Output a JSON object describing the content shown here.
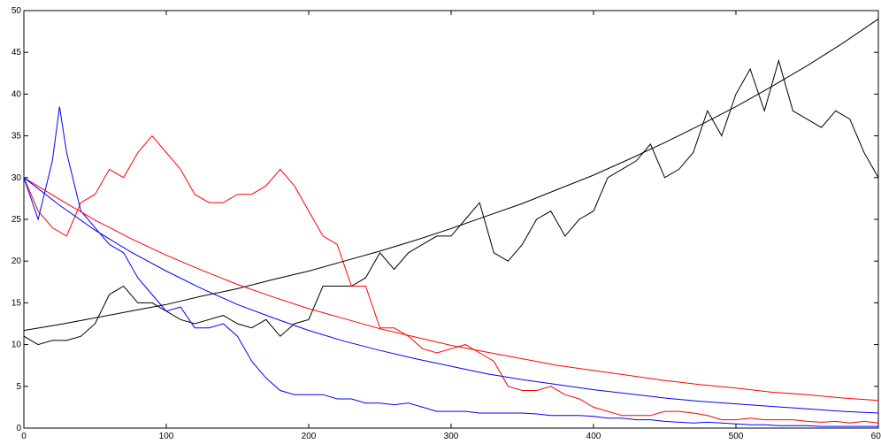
{
  "chart_data": {
    "type": "line",
    "xlim": [
      0,
      600
    ],
    "ylim": [
      0,
      50
    ],
    "xticks": [
      0,
      100,
      200,
      300,
      400,
      500,
      600
    ],
    "yticks": [
      0,
      5,
      10,
      15,
      20,
      25,
      30,
      35,
      40,
      45,
      50
    ],
    "series": [
      {
        "color": "#000000",
        "x": [
          0,
          10,
          20,
          30,
          40,
          50,
          60,
          70,
          80,
          90,
          100,
          110,
          120,
          130,
          140,
          150,
          160,
          170,
          180,
          190,
          200,
          210,
          220,
          230,
          240,
          250,
          260,
          270,
          280,
          290,
          300,
          310,
          320,
          330,
          340,
          350,
          360,
          370,
          380,
          390,
          400,
          410,
          420,
          430,
          440,
          450,
          460,
          470,
          480,
          490,
          500,
          510,
          520,
          530,
          540,
          550,
          560,
          570,
          580,
          590,
          600
        ],
        "values": [
          11,
          10,
          10.5,
          10.5,
          11,
          12.5,
          16,
          17,
          15,
          15,
          14,
          13,
          12.5,
          13,
          13.5,
          12.5,
          12,
          13,
          11,
          12.5,
          13,
          17,
          17,
          17,
          18,
          21,
          19,
          21,
          22,
          23,
          23,
          25,
          27,
          21,
          20,
          22,
          25,
          26,
          23,
          25,
          26,
          30,
          31,
          32,
          34,
          30,
          31,
          33,
          38,
          35,
          40,
          43,
          38,
          44,
          38,
          37,
          36,
          38,
          37,
          33,
          30
        ]
      },
      {
        "color": "#ff0000",
        "x": [
          0,
          10,
          20,
          30,
          40,
          50,
          60,
          70,
          80,
          90,
          100,
          110,
          120,
          130,
          140,
          150,
          160,
          170,
          180,
          190,
          200,
          210,
          220,
          230,
          240,
          250,
          260,
          270,
          280,
          290,
          300,
          310,
          320,
          330,
          340,
          350,
          360,
          370,
          380,
          390,
          400,
          410,
          420,
          430,
          440,
          450,
          460,
          470,
          480,
          490,
          500,
          510,
          520,
          530,
          540,
          550,
          560,
          570,
          580,
          590,
          600
        ],
        "values": [
          30,
          26,
          24,
          23,
          27,
          28,
          31,
          30,
          33,
          35,
          33,
          31,
          28,
          27,
          27,
          28,
          28,
          29,
          31,
          29,
          26,
          23,
          22,
          17,
          17,
          12,
          12,
          11,
          9.5,
          9,
          9.5,
          10,
          9,
          8,
          5,
          4.5,
          4.5,
          5,
          4,
          3.5,
          2.5,
          2,
          1.5,
          1.5,
          1.5,
          2,
          2,
          1.8,
          1.5,
          1,
          1,
          1.2,
          1,
          1,
          1,
          0.8,
          0.7,
          0.8,
          0.6,
          0.8,
          0.6
        ]
      },
      {
        "color": "#0000ff",
        "x": [
          0,
          10,
          20,
          25,
          30,
          40,
          50,
          60,
          70,
          80,
          90,
          100,
          110,
          120,
          130,
          140,
          150,
          160,
          170,
          180,
          190,
          200,
          210,
          220,
          230,
          240,
          250,
          260,
          270,
          280,
          290,
          300,
          310,
          320,
          330,
          340,
          350,
          360,
          370,
          380,
          390,
          400,
          410,
          420,
          430,
          440,
          450,
          460,
          470,
          480,
          490,
          500,
          510,
          520,
          530,
          540,
          550,
          560,
          570,
          580,
          590,
          600
        ],
        "values": [
          30,
          25,
          32,
          38.5,
          33,
          26,
          24,
          22,
          21,
          18,
          16,
          14,
          14.5,
          12,
          12,
          12.5,
          11,
          8,
          6,
          4.5,
          4,
          4,
          4,
          3.5,
          3.5,
          3,
          3,
          2.8,
          3,
          2.5,
          2,
          2,
          2,
          1.8,
          1.8,
          1.8,
          1.8,
          1.7,
          1.5,
          1.5,
          1.5,
          1.4,
          1.2,
          1.2,
          1,
          1,
          0.8,
          0.7,
          0.6,
          0.7,
          0.6,
          0.5,
          0.4,
          0.4,
          0.3,
          0.3,
          0.3,
          0.2,
          0.2,
          0.2,
          0.2,
          0.2
        ]
      },
      {
        "color": "#000000",
        "x": [
          0,
          25,
          50,
          75,
          100,
          125,
          150,
          175,
          200,
          225,
          250,
          275,
          300,
          325,
          350,
          375,
          400,
          425,
          450,
          475,
          500,
          525,
          550,
          575,
          600
        ],
        "values": [
          11.7,
          12.4,
          13.2,
          14.0,
          14.8,
          15.8,
          16.7,
          17.8,
          18.8,
          20.0,
          21.2,
          22.5,
          23.9,
          25.4,
          26.9,
          28.6,
          30.3,
          32.2,
          34.2,
          36.3,
          38.5,
          40.9,
          43.4,
          46.1,
          49.0
        ]
      },
      {
        "color": "#ff0000",
        "x": [
          0,
          25,
          50,
          75,
          100,
          125,
          150,
          175,
          200,
          225,
          250,
          275,
          300,
          325,
          350,
          375,
          400,
          425,
          450,
          475,
          500,
          525,
          550,
          575,
          600
        ],
        "values": [
          30,
          27.4,
          24.9,
          22.7,
          20.7,
          18.9,
          17.2,
          15.7,
          14.3,
          13.1,
          11.9,
          10.9,
          9.9,
          9.1,
          8.3,
          7.5,
          6.9,
          6.3,
          5.7,
          5.2,
          4.8,
          4.3,
          4.0,
          3.6,
          3.3
        ]
      },
      {
        "color": "#0000ff",
        "x": [
          0,
          25,
          50,
          75,
          100,
          125,
          150,
          175,
          200,
          225,
          250,
          275,
          300,
          325,
          350,
          375,
          400,
          425,
          450,
          475,
          500,
          525,
          550,
          575,
          600
        ],
        "values": [
          30,
          26.7,
          23.7,
          21.1,
          18.8,
          16.7,
          14.8,
          13.2,
          11.7,
          10.4,
          9.3,
          8.3,
          7.4,
          6.5,
          5.8,
          5.2,
          4.6,
          4.1,
          3.6,
          3.2,
          2.9,
          2.6,
          2.3,
          2.0,
          1.8
        ]
      }
    ]
  }
}
